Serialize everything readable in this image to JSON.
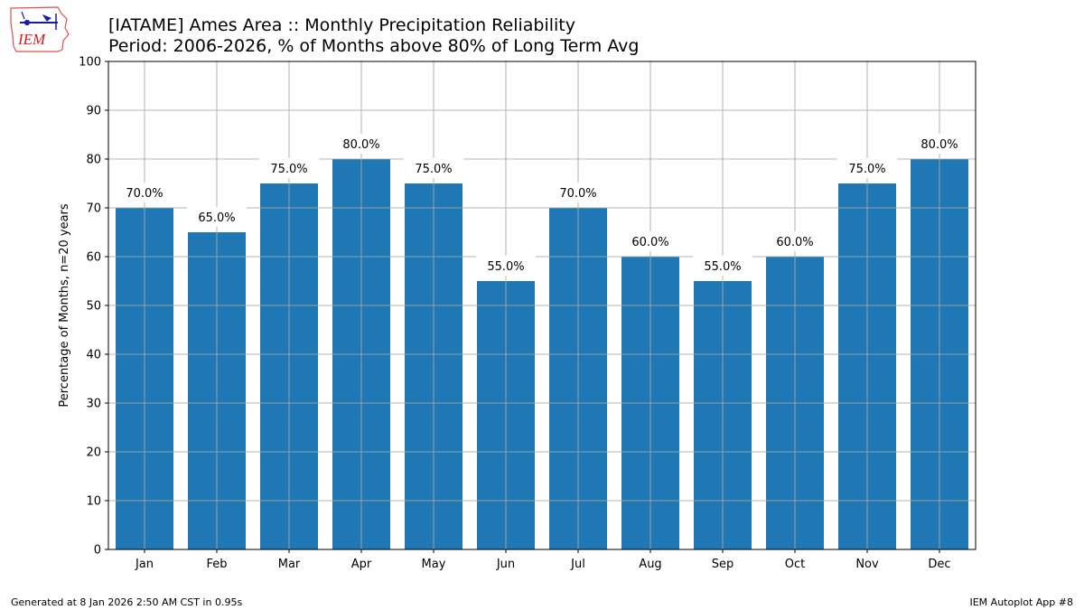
{
  "logo": {
    "text": "IEM"
  },
  "title": "[IATAME] Ames Area :: Monthly Precipitation Reliability",
  "subtitle": "Period: 2006-2026, % of Months above 80% of Long Term Avg",
  "footer": {
    "left": "Generated at 8 Jan 2026 2:50 AM CST in 0.95s",
    "right": "IEM Autoplot App #8"
  },
  "chart_data": {
    "type": "bar",
    "title": "[IATAME] Ames Area :: Monthly Precipitation Reliability",
    "subtitle": "Period: 2006-2026, % of Months above 80% of Long Term Avg",
    "xlabel": "",
    "ylabel": "Percentage of Months, n=20 years",
    "categories": [
      "Jan",
      "Feb",
      "Mar",
      "Apr",
      "May",
      "Jun",
      "Jul",
      "Aug",
      "Sep",
      "Oct",
      "Nov",
      "Dec"
    ],
    "values": [
      70,
      65,
      75,
      80,
      75,
      55,
      70,
      60,
      55,
      60,
      75,
      80
    ],
    "data_labels": [
      "70.0%",
      "65.0%",
      "75.0%",
      "80.0%",
      "75.0%",
      "55.0%",
      "70.0%",
      "60.0%",
      "55.0%",
      "60.0%",
      "75.0%",
      "80.0%"
    ],
    "ylim": [
      0,
      100
    ],
    "yticks": [
      0,
      10,
      20,
      30,
      40,
      50,
      60,
      70,
      80,
      90,
      100
    ],
    "grid": true,
    "bar_color": "#1f77b4",
    "grid_color": "#b0b0b0"
  }
}
